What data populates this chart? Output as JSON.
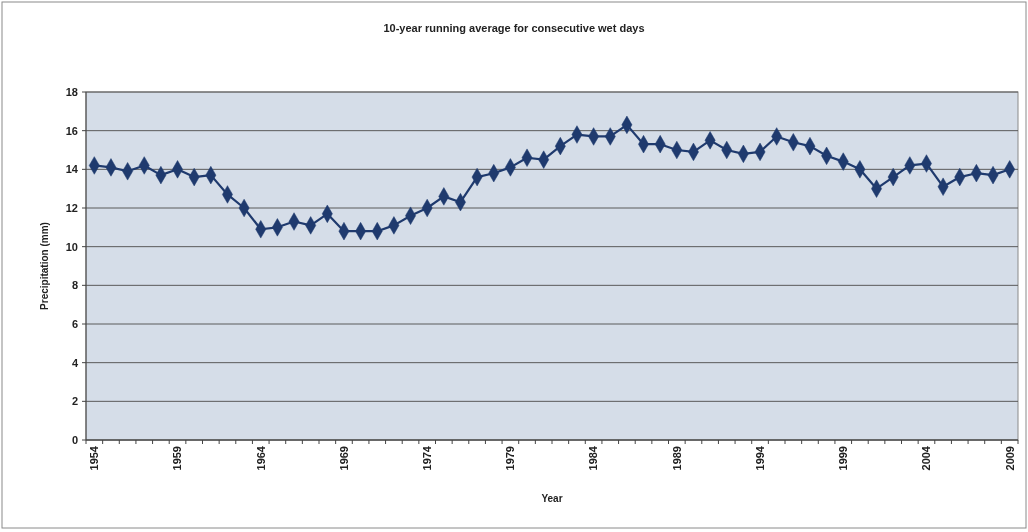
{
  "chart_data": {
    "type": "line",
    "title": "10-year running average for consecutive wet days",
    "xlabel": "Year",
    "ylabel": "Precipitation (mm)",
    "categories": [
      "1954",
      null,
      null,
      null,
      null,
      "1959",
      null,
      null,
      null,
      null,
      "1964",
      null,
      null,
      null,
      null,
      "1969",
      null,
      null,
      null,
      null,
      "1974",
      null,
      null,
      null,
      null,
      "1979",
      null,
      null,
      null,
      null,
      "1984",
      null,
      null,
      null,
      null,
      "1989",
      null,
      null,
      null,
      null,
      "1994",
      null,
      null,
      null,
      null,
      "1999",
      null,
      null,
      null,
      null,
      "2004",
      null,
      null,
      null,
      null,
      "2009"
    ],
    "series": [
      {
        "color": "#1f3a6e",
        "values": [
          14.2,
          14.1,
          13.9,
          14.2,
          13.7,
          14.0,
          13.6,
          13.7,
          12.7,
          12.0,
          10.9,
          11.0,
          11.3,
          11.1,
          11.7,
          10.8,
          10.8,
          10.8,
          11.1,
          11.6,
          12.0,
          12.6,
          12.3,
          13.6,
          13.8,
          14.1,
          14.6,
          14.5,
          15.2,
          15.8,
          15.7,
          15.7,
          16.3,
          15.3,
          15.3,
          15.0,
          14.9,
          15.5,
          15.0,
          14.8,
          14.9,
          15.7,
          15.4,
          15.2,
          14.7,
          14.4,
          14.0,
          13.0,
          13.6,
          14.2,
          14.3,
          13.1,
          13.6,
          13.8,
          13.7,
          14.0
        ]
      }
    ],
    "ylim": [
      0,
      18
    ],
    "yticks": [
      0,
      2,
      4,
      6,
      8,
      10,
      12,
      14,
      16,
      18
    ],
    "grid": "y",
    "marker": "diamond",
    "line_style": "solid"
  }
}
